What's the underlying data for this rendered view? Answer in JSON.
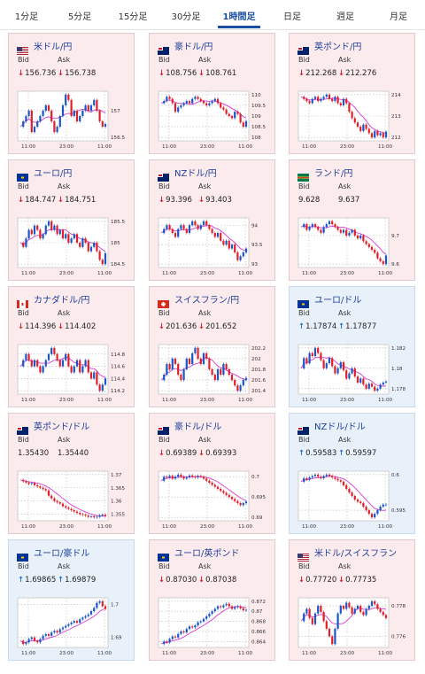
{
  "tabs": [
    {
      "label": "1分足",
      "active": false
    },
    {
      "label": "5分足",
      "active": false
    },
    {
      "label": "15分足",
      "active": false
    },
    {
      "label": "30分足",
      "active": false
    },
    {
      "label": "1時間足",
      "active": true
    },
    {
      "label": "日足",
      "active": false
    },
    {
      "label": "週足",
      "active": false
    },
    {
      "label": "月足",
      "active": false
    }
  ],
  "labels": {
    "bid": "Bid",
    "ask": "Ask"
  },
  "colors": {
    "up_candle": "#1a56c9",
    "down_candle": "#e01f2a",
    "ma": "#d63ad2",
    "title": "#1d3f9a",
    "down_card_bg": "#fbebec",
    "up_card_bg": "#e8f1fa"
  },
  "pairs": [
    {
      "name": "米ドル/円",
      "flag": "us-flag",
      "direction": "down",
      "bid": "156.736",
      "ask": "156.738",
      "y_ticks": [
        "157",
        "156.5"
      ],
      "x_ticks": [
        "11:00",
        "23:00",
        "11:00"
      ],
      "series": [
        156.7,
        156.8,
        156.9,
        157.0,
        156.6,
        156.7,
        156.8,
        156.9,
        157.0,
        157.1,
        157.0,
        156.8,
        156.6,
        156.7,
        156.9,
        157.1,
        157.3,
        157.2,
        156.9,
        157.0,
        156.8,
        156.9,
        157.0,
        157.1,
        157.0,
        157.1,
        157.2,
        157.0,
        156.8,
        156.7,
        156.75
      ]
    },
    {
      "name": "豪ドル/円",
      "flag": "au-flag",
      "direction": "down",
      "bid": "108.756",
      "ask": "108.761",
      "y_ticks": [
        "110",
        "109.5",
        "109",
        "108.5",
        "108"
      ],
      "x_ticks": [
        "11:00",
        "23:00",
        "11:00"
      ],
      "series": [
        109.6,
        109.7,
        109.9,
        109.8,
        109.6,
        109.2,
        109.4,
        109.5,
        109.6,
        109.7,
        109.6,
        109.8,
        109.9,
        109.8,
        109.7,
        109.6,
        109.5,
        109.6,
        109.7,
        109.8,
        109.6,
        109.4,
        109.3,
        109.1,
        109.0,
        108.9,
        109.2,
        109.1,
        108.7,
        108.5,
        108.76
      ]
    },
    {
      "name": "英ポンド/円",
      "flag": "gb-flag",
      "direction": "down",
      "bid": "212.268",
      "ask": "212.276",
      "y_ticks": [
        "214",
        "213",
        "212"
      ],
      "x_ticks": [
        "11:00",
        "23:00",
        "11:00"
      ],
      "series": [
        213.9,
        213.8,
        213.7,
        213.6,
        213.8,
        213.9,
        213.7,
        213.8,
        213.9,
        214.0,
        213.8,
        213.7,
        213.9,
        213.6,
        213.5,
        213.8,
        213.6,
        213.2,
        212.9,
        212.7,
        212.5,
        212.3,
        212.6,
        212.4,
        212.2,
        212.0,
        212.3,
        212.1,
        212.2,
        212.0,
        212.27
      ]
    },
    {
      "name": "ユーロ/円",
      "flag": "eu-flag",
      "direction": "down",
      "bid": "184.747",
      "ask": "184.751",
      "y_ticks": [
        "185.5",
        "185",
        "184.5"
      ],
      "x_ticks": [
        "11:00",
        "23:00",
        "11:00"
      ],
      "series": [
        185.0,
        184.9,
        185.1,
        185.3,
        185.2,
        185.4,
        185.3,
        185.1,
        185.2,
        185.4,
        185.5,
        185.3,
        185.4,
        185.2,
        185.3,
        185.1,
        185.2,
        185.0,
        185.1,
        185.2,
        185.0,
        184.9,
        185.1,
        185.0,
        184.8,
        184.9,
        185.0,
        184.8,
        184.6,
        184.5,
        184.75
      ]
    },
    {
      "name": "NZドル/円",
      "flag": "nz-flag",
      "direction": "down",
      "bid": "93.396",
      "ask": "93.403",
      "y_ticks": [
        "94",
        "93.5",
        "93"
      ],
      "x_ticks": [
        "11:00",
        "23:00",
        "11:00"
      ],
      "series": [
        93.8,
        93.9,
        94.0,
        93.9,
        93.8,
        93.7,
        93.9,
        94.0,
        93.9,
        93.8,
        94.0,
        94.1,
        94.0,
        93.9,
        94.0,
        94.1,
        94.0,
        93.9,
        93.8,
        93.7,
        93.8,
        93.6,
        93.5,
        93.6,
        93.4,
        93.5,
        93.3,
        93.1,
        93.2,
        93.3,
        93.4
      ]
    },
    {
      "name": "ランド/円",
      "flag": "za-flag",
      "direction": "none",
      "bid": "9.628",
      "ask": "9.637",
      "y_ticks": [
        "9.7",
        "9.6"
      ],
      "x_ticks": [
        "11:00",
        "23:00",
        "11:00"
      ],
      "series": [
        9.73,
        9.74,
        9.72,
        9.73,
        9.74,
        9.73,
        9.72,
        9.71,
        9.73,
        9.74,
        9.75,
        9.74,
        9.73,
        9.72,
        9.71,
        9.72,
        9.7,
        9.71,
        9.72,
        9.7,
        9.69,
        9.7,
        9.68,
        9.67,
        9.66,
        9.65,
        9.64,
        9.62,
        9.61,
        9.6,
        9.63
      ]
    },
    {
      "name": "カナダドル/円",
      "flag": "ca-flag",
      "direction": "down",
      "bid": "114.396",
      "ask": "114.402",
      "y_ticks": [
        "114.8",
        "114.6",
        "114.4",
        "114.2"
      ],
      "x_ticks": [
        "11:00",
        "23:00",
        "11:00"
      ],
      "series": [
        114.6,
        114.7,
        114.8,
        114.7,
        114.6,
        114.7,
        114.6,
        114.5,
        114.6,
        114.7,
        114.8,
        114.9,
        114.8,
        114.7,
        114.6,
        114.7,
        114.8,
        114.6,
        114.5,
        114.6,
        114.7,
        114.5,
        114.6,
        114.7,
        114.5,
        114.4,
        114.5,
        114.3,
        114.2,
        114.3,
        114.4
      ]
    },
    {
      "name": "スイスフラン/円",
      "flag": "ch-flag",
      "direction": "down",
      "bid": "201.636",
      "ask": "201.652",
      "y_ticks": [
        "202.2",
        "202",
        "201.8",
        "201.6",
        "201.4"
      ],
      "x_ticks": [
        "11:00",
        "23:00",
        "11:00"
      ],
      "series": [
        201.6,
        201.7,
        201.9,
        201.8,
        202.0,
        201.9,
        201.7,
        201.6,
        201.8,
        202.0,
        201.9,
        202.1,
        202.2,
        202.0,
        201.9,
        202.1,
        202.0,
        201.8,
        201.7,
        201.6,
        201.8,
        201.7,
        201.9,
        201.8,
        201.7,
        201.6,
        201.5,
        201.4,
        201.5,
        201.6,
        201.64
      ]
    },
    {
      "name": "ユーロ/ドル",
      "flag": "eu-us-flag",
      "direction": "up",
      "bid": "1.17874",
      "ask": "1.17877",
      "y_ticks": [
        "1.182",
        "1.18",
        "1.178"
      ],
      "x_ticks": [
        "11:00",
        "23:00",
        "11:00"
      ],
      "series": [
        1.18,
        1.181,
        1.1805,
        1.1815,
        1.1812,
        1.182,
        1.1815,
        1.1808,
        1.18,
        1.1805,
        1.181,
        1.1802,
        1.1795,
        1.18,
        1.1806,
        1.1798,
        1.179,
        1.1795,
        1.18,
        1.1792,
        1.1786,
        1.179,
        1.1784,
        1.178,
        1.1785,
        1.1782,
        1.1778,
        1.178,
        1.1784,
        1.1786,
        1.1787
      ]
    },
    {
      "name": "英ポンド/ドル",
      "flag": "gb-us-flag",
      "direction": "none",
      "bid": "1.35430",
      "ask": "1.35440",
      "y_ticks": [
        "1.37",
        "1.365",
        "1.36",
        "1.355"
      ],
      "x_ticks": [
        "11:00",
        "23:00",
        "11:00"
      ],
      "series": [
        1.368,
        1.3675,
        1.367,
        1.3665,
        1.3668,
        1.366,
        1.3655,
        1.365,
        1.3645,
        1.364,
        1.362,
        1.361,
        1.36,
        1.3595,
        1.359,
        1.358,
        1.3575,
        1.357,
        1.3565,
        1.356,
        1.3555,
        1.355,
        1.3548,
        1.3545,
        1.354,
        1.3542,
        1.3538,
        1.354,
        1.3545,
        1.3548,
        1.3543
      ]
    },
    {
      "name": "豪ドル/ドル",
      "flag": "au-us-flag",
      "direction": "down",
      "bid": "0.69389",
      "ask": "0.69393",
      "y_ticks": [
        "0.7",
        "0.695",
        "0.69"
      ],
      "x_ticks": [
        "11:00",
        "23:00",
        "11:00"
      ],
      "series": [
        0.699,
        0.7,
        0.6998,
        0.7002,
        0.6995,
        0.7,
        0.7005,
        0.7,
        0.6995,
        0.6998,
        0.7003,
        0.7,
        0.6998,
        0.7002,
        0.7,
        0.6995,
        0.699,
        0.6985,
        0.698,
        0.6975,
        0.697,
        0.6965,
        0.696,
        0.6955,
        0.695,
        0.6945,
        0.694,
        0.6935,
        0.693,
        0.6935,
        0.6939
      ]
    },
    {
      "name": "NZドル/ドル",
      "flag": "nz-us-flag",
      "direction": "up",
      "bid": "0.59583",
      "ask": "0.59597",
      "y_ticks": [
        "0.6",
        "0.595"
      ],
      "x_ticks": [
        "11:00",
        "23:00",
        "11:00"
      ],
      "series": [
        0.599,
        0.5995,
        0.5993,
        0.5996,
        0.5998,
        0.6,
        0.5997,
        0.5995,
        0.5998,
        0.6,
        0.5998,
        0.5996,
        0.5994,
        0.5992,
        0.599,
        0.5985,
        0.598,
        0.5975,
        0.597,
        0.5965,
        0.5962,
        0.596,
        0.5955,
        0.595,
        0.5945,
        0.594,
        0.5945,
        0.595,
        0.5955,
        0.5958,
        0.5958
      ]
    },
    {
      "name": "ユーロ/豪ドル",
      "flag": "eu-au-flag",
      "direction": "up",
      "bid": "1.69865",
      "ask": "1.69879",
      "y_ticks": [
        "1.7",
        "1.69"
      ],
      "x_ticks": [
        "11:00",
        "23:00",
        "11:00"
      ],
      "series": [
        1.689,
        1.688,
        1.6885,
        1.6895,
        1.69,
        1.689,
        1.6885,
        1.6895,
        1.6905,
        1.691,
        1.6905,
        1.6915,
        1.692,
        1.6915,
        1.6925,
        1.693,
        1.6935,
        1.694,
        1.6945,
        1.695,
        1.6945,
        1.6955,
        1.696,
        1.6965,
        1.697,
        1.698,
        1.699,
        1.7005,
        1.701,
        1.6995,
        1.6987
      ]
    },
    {
      "name": "ユーロ/英ポンド",
      "flag": "eu-gb-flag",
      "direction": "down",
      "bid": "0.87030",
      "ask": "0.87038",
      "y_ticks": [
        "0.872",
        "0.87",
        "0.868",
        "0.866",
        "0.864"
      ],
      "x_ticks": [
        "11:00",
        "23:00",
        "11:00"
      ],
      "series": [
        0.8635,
        0.864,
        0.8638,
        0.8645,
        0.865,
        0.8648,
        0.8655,
        0.866,
        0.8658,
        0.8665,
        0.867,
        0.8668,
        0.8672,
        0.8678,
        0.868,
        0.8685,
        0.869,
        0.8695,
        0.87,
        0.8705,
        0.871,
        0.8708,
        0.8712,
        0.8715,
        0.871,
        0.8705,
        0.8708,
        0.871,
        0.8706,
        0.8702,
        0.8703
      ]
    },
    {
      "name": "米ドル/スイスフラン",
      "flag": "us-ch-flag",
      "direction": "down",
      "bid": "0.77720",
      "ask": "0.77735",
      "y_ticks": [
        "0.778",
        "0.776"
      ],
      "x_ticks": [
        "11:00",
        "23:00",
        "11:00"
      ],
      "series": [
        0.777,
        0.7775,
        0.7778,
        0.7772,
        0.7768,
        0.7775,
        0.778,
        0.7776,
        0.777,
        0.7765,
        0.776,
        0.7755,
        0.7765,
        0.7775,
        0.778,
        0.7778,
        0.7782,
        0.7779,
        0.7775,
        0.7778,
        0.778,
        0.7776,
        0.7774,
        0.7778,
        0.778,
        0.7783,
        0.7781,
        0.7778,
        0.7776,
        0.7774,
        0.7772
      ]
    }
  ]
}
